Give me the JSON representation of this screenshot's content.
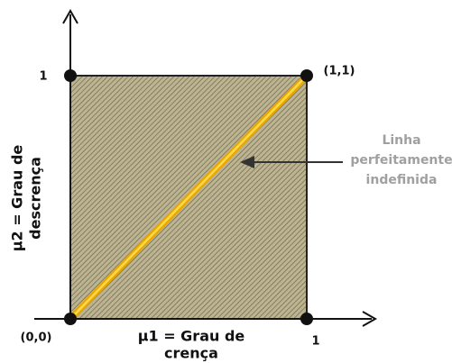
{
  "points": [
    {
      "label": "1"
    },
    {
      "label": "(1,1)"
    },
    {
      "label": "(0,0)"
    },
    {
      "label": "1"
    }
  ],
  "x_axis_label": [
    "μ1 = Grau de",
    "crença"
  ],
  "y_axis_label": [
    "μ2 = Grau de",
    "descrença"
  ],
  "annotation": [
    "Linha",
    "perfeitamente",
    "indefinida"
  ]
}
